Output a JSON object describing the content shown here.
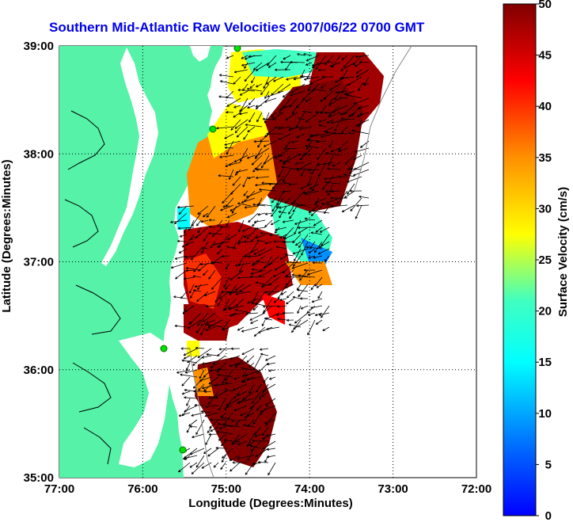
{
  "chart_data": {
    "type": "heatmap",
    "title": "Southern Mid-Atlantic Raw Velocities 2007/06/22 0700 GMT",
    "xlabel": "Longitude (Degrees:Minutes)",
    "ylabel": "Latitude (Degrees:Minutes)",
    "colorbar_label": "Surface Velocity (cm/s)",
    "x_ticks": [
      "77:00",
      "76:00",
      "75:00",
      "74:00",
      "73:00",
      "72:00"
    ],
    "y_ticks": [
      "39:00",
      "38:00",
      "37:00",
      "36:00",
      "35:00"
    ],
    "colorbar_ticks": [
      "50",
      "45",
      "40",
      "35",
      "30",
      "25",
      "20",
      "15",
      "10",
      "5",
      "0"
    ],
    "xlim": [
      -77,
      -72
    ],
    "ylim": [
      35,
      39
    ],
    "clim": [
      0,
      50
    ],
    "grid": true,
    "land_color": "#55f2a8",
    "coastline_color": "#000000",
    "grid_color": "#000000",
    "colormap": "jet"
  }
}
